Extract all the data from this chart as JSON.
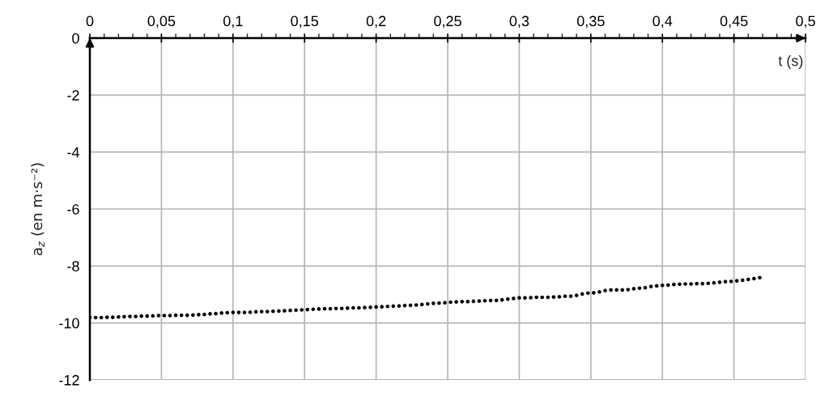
{
  "chart_data": {
    "type": "scatter",
    "xlabel": "t (s)",
    "ylabel": "a$_{z}$ (en m·s⁻²)",
    "xlim": [
      0,
      0.5
    ],
    "xticks": [
      0,
      {
        "value": 0.05,
        "label": "0,05"
      },
      {
        "value": 0.1,
        "label": "0,1"
      },
      {
        "value": 0.15,
        "label": "0,15"
      },
      {
        "value": 0.2,
        "label": "0,2"
      },
      {
        "value": 0.25,
        "label": "0,25"
      },
      {
        "value": 0.3,
        "label": "0,3"
      },
      {
        "value": 0.35,
        "label": "0,35"
      },
      {
        "value": 0.4,
        "label": "0,4"
      },
      {
        "value": 0.45,
        "label": "0,45"
      },
      {
        "value": 0.5,
        "label": "0,5"
      }
    ],
    "ylim": [
      -12,
      0
    ],
    "yticks": [
      0,
      -2,
      -4,
      -6,
      -8,
      -10,
      -12
    ],
    "grid": true,
    "marker": "circle",
    "x": [
      0,
      0.004,
      0.008,
      0.012,
      0.016,
      0.02,
      0.024,
      0.028,
      0.032,
      0.036,
      0.04,
      0.044,
      0.048,
      0.052,
      0.056,
      0.06,
      0.064,
      0.068,
      0.072,
      0.076,
      0.08,
      0.084,
      0.088,
      0.092,
      0.096,
      0.1,
      0.104,
      0.108,
      0.112,
      0.116,
      0.12,
      0.124,
      0.128,
      0.132,
      0.136,
      0.14,
      0.144,
      0.148,
      0.152,
      0.156,
      0.16,
      0.164,
      0.168,
      0.172,
      0.176,
      0.18,
      0.184,
      0.188,
      0.192,
      0.196,
      0.2,
      0.204,
      0.208,
      0.212,
      0.216,
      0.22,
      0.224,
      0.228,
      0.232,
      0.236,
      0.24,
      0.244,
      0.248,
      0.252,
      0.256,
      0.26,
      0.264,
      0.268,
      0.272,
      0.276,
      0.28,
      0.284,
      0.288,
      0.292,
      0.296,
      0.3,
      0.304,
      0.308,
      0.312,
      0.316,
      0.32,
      0.324,
      0.328,
      0.332,
      0.336,
      0.34,
      0.344,
      0.348,
      0.352,
      0.356,
      0.36,
      0.364,
      0.368,
      0.372,
      0.376,
      0.38,
      0.384,
      0.388,
      0.392,
      0.396,
      0.4,
      0.404,
      0.408,
      0.412,
      0.416,
      0.42,
      0.424,
      0.428,
      0.432,
      0.436,
      0.44,
      0.444,
      0.448,
      0.452,
      0.456,
      0.46,
      0.464,
      0.468
    ],
    "series": [
      {
        "color": "#000000",
        "values": [
          -9.81,
          -9.81,
          -9.81,
          -9.8,
          -9.8,
          -9.79,
          -9.78,
          -9.77,
          -9.77,
          -9.76,
          -9.76,
          -9.75,
          -9.74,
          -9.74,
          -9.74,
          -9.73,
          -9.73,
          -9.73,
          -9.72,
          -9.71,
          -9.7,
          -9.68,
          -9.67,
          -9.65,
          -9.64,
          -9.63,
          -9.63,
          -9.63,
          -9.62,
          -9.61,
          -9.6,
          -9.6,
          -9.59,
          -9.58,
          -9.57,
          -9.56,
          -9.55,
          -9.54,
          -9.53,
          -9.52,
          -9.51,
          -9.5,
          -9.5,
          -9.49,
          -9.49,
          -9.48,
          -9.47,
          -9.47,
          -9.46,
          -9.45,
          -9.44,
          -9.43,
          -9.42,
          -9.41,
          -9.4,
          -9.39,
          -9.38,
          -9.37,
          -9.35,
          -9.33,
          -9.31,
          -9.3,
          -9.29,
          -9.27,
          -9.26,
          -9.25,
          -9.25,
          -9.24,
          -9.23,
          -9.22,
          -9.21,
          -9.21,
          -9.19,
          -9.16,
          -9.14,
          -9.12,
          -9.12,
          -9.11,
          -9.1,
          -9.1,
          -9.1,
          -9.09,
          -9.08,
          -9.06,
          -9.06,
          -9.03,
          -8.98,
          -8.95,
          -8.94,
          -8.91,
          -8.86,
          -8.84,
          -8.84,
          -8.84,
          -8.83,
          -8.8,
          -8.78,
          -8.76,
          -8.72,
          -8.7,
          -8.68,
          -8.67,
          -8.65,
          -8.64,
          -8.63,
          -8.63,
          -8.62,
          -8.62,
          -8.61,
          -8.59,
          -8.57,
          -8.55,
          -8.54,
          -8.52,
          -8.5,
          -8.47,
          -8.44,
          -8.41
        ]
      }
    ]
  }
}
